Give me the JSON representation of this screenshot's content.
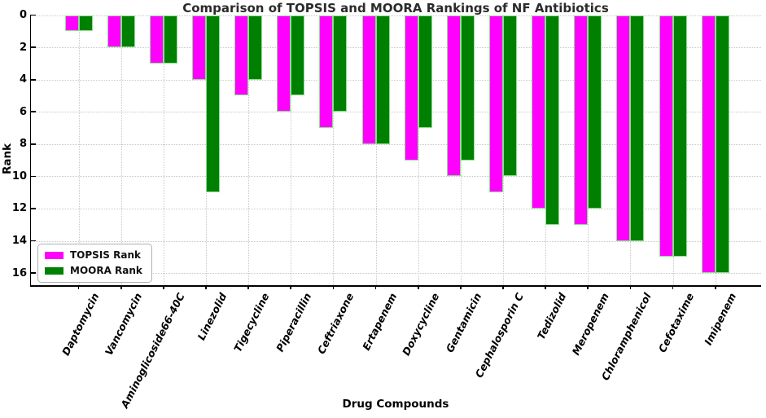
{
  "chart_data": {
    "type": "bar",
    "orientation": "vertical",
    "y_inverted": true,
    "title": "Comparison of TOPSIS and MOORA Rankings of NF Antibiotics",
    "xlabel": "Drug Compounds",
    "ylabel": "Rank",
    "categories": [
      "Daptomycin",
      "Vancomycin",
      "Aminoglicoside66-40C",
      "Linezolid",
      "Tigecycline",
      "Piperacillin",
      "Ceftriaxone",
      "Ertapenem",
      "Doxycycline",
      "Gentamicin",
      "Cephalosporin C",
      "Tedizolid",
      "Meropenem",
      "Chloramphenicol",
      "Cefotaxime",
      "Imipenem"
    ],
    "series": [
      {
        "name": "TOPSIS Rank",
        "color": "#FF00FF",
        "values": [
          1,
          2,
          3,
          4,
          5,
          6,
          7,
          8,
          9,
          10,
          11,
          12,
          13,
          14,
          15,
          16
        ]
      },
      {
        "name": "MOORA Rank",
        "color": "#008000",
        "values": [
          1,
          2,
          3,
          11,
          4,
          5,
          6,
          8,
          7,
          9,
          10,
          13,
          12,
          14,
          15,
          16
        ]
      }
    ],
    "y_ticks": [
      0,
      2,
      4,
      6,
      8,
      10,
      12,
      14,
      16
    ],
    "ylim": [
      0,
      16.75
    ],
    "grid": true,
    "grid_style": "dotted",
    "legend_position": "lower left",
    "colors": {
      "topsis": "#FF00FF",
      "moora": "#008000",
      "grid": "#c8c8c8",
      "axis": "#000000",
      "title_text": "#2b2b2b",
      "background": "#ffffff"
    }
  }
}
